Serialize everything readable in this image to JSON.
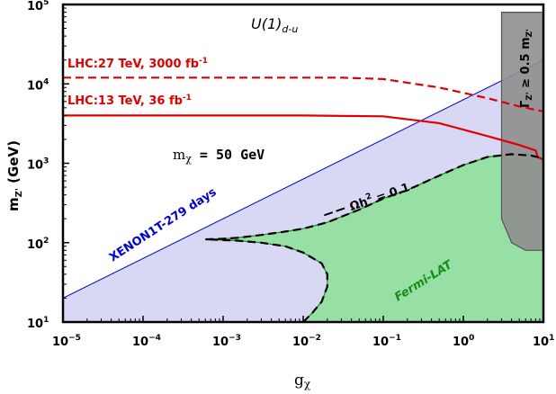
{
  "chart_data": {
    "type": "area",
    "title": "U(1)",
    "title_subscript": "d-u",
    "xlabel": "g",
    "xlabel_subscript": "χ",
    "ylabel": "m",
    "ylabel_subscript": "Z'",
    "ylabel_suffix": " (GeV)",
    "xscale": "log",
    "yscale": "log",
    "xlim": [
      1e-05,
      10
    ],
    "ylim": [
      10,
      100000
    ],
    "x_ticks": [
      {
        "value": 1e-05,
        "base": "10",
        "exp": "−5"
      },
      {
        "value": 0.0001,
        "base": "10",
        "exp": "−4"
      },
      {
        "value": 0.001,
        "base": "10",
        "exp": "−3"
      },
      {
        "value": 0.01,
        "base": "10",
        "exp": "−2"
      },
      {
        "value": 0.1,
        "base": "10",
        "exp": "−1"
      },
      {
        "value": 1,
        "base": "10",
        "exp": "0"
      },
      {
        "value": 10,
        "base": "10",
        "exp": "1"
      }
    ],
    "y_ticks": [
      {
        "value": 10,
        "base": "10",
        "exp": "1"
      },
      {
        "value": 100,
        "base": "10",
        "exp": "2"
      },
      {
        "value": 1000,
        "base": "10",
        "exp": "3"
      },
      {
        "value": 10000,
        "base": "10",
        "exp": "4"
      },
      {
        "value": 100000,
        "base": "10",
        "exp": "5"
      }
    ],
    "annotation_mass": {
      "prefix": "m",
      "sub": "χ",
      "value": " = 50 GeV"
    },
    "series": [
      {
        "name": "XENON1T-279 days",
        "kind": "excluded-region",
        "color": "#0000cc",
        "fill": "#d8d8f4",
        "points": [
          [
            1e-05,
            20
          ],
          [
            10,
            20000
          ],
          [
            10,
            10
          ],
          [
            1e-05,
            10
          ]
        ]
      },
      {
        "name": "LHC:13 TeV, 36 fb",
        "name_sup": "-1",
        "kind": "line",
        "dash": false,
        "color": "#e00000",
        "points": [
          [
            1e-05,
            4000
          ],
          [
            0.01,
            4000
          ],
          [
            0.1,
            3900
          ],
          [
            0.5,
            3200
          ],
          [
            2,
            2200
          ],
          [
            5,
            1700
          ],
          [
            8,
            1450
          ],
          [
            8.5,
            1200
          ],
          [
            10,
            1100
          ]
        ]
      },
      {
        "name": "LHC:27 TeV, 3000 fb",
        "name_sup": "-1",
        "kind": "line",
        "dash": true,
        "color": "#e00000",
        "points": [
          [
            1e-05,
            12000
          ],
          [
            0.03,
            12000
          ],
          [
            0.1,
            11500
          ],
          [
            0.5,
            9000
          ],
          [
            2,
            6600
          ],
          [
            5,
            5200
          ],
          [
            10,
            4500
          ]
        ]
      },
      {
        "name": "Fermi-LAT",
        "kind": "excluded-region",
        "color": "#1a8a1a",
        "fill": "#96e0a6",
        "points": [
          [
            0.0006,
            110
          ],
          [
            0.001,
            112
          ],
          [
            0.0015,
            115
          ],
          [
            0.003,
            125
          ],
          [
            0.006,
            138
          ],
          [
            0.01,
            150
          ],
          [
            0.02,
            180
          ],
          [
            0.05,
            260
          ],
          [
            0.1,
            360
          ],
          [
            0.2,
            460
          ],
          [
            0.5,
            700
          ],
          [
            1,
            950
          ],
          [
            2,
            1200
          ],
          [
            4,
            1300
          ],
          [
            7,
            1250
          ],
          [
            10,
            1150
          ],
          [
            10,
            10
          ],
          [
            0.01,
            10
          ],
          [
            0.013,
            13
          ],
          [
            0.017,
            18
          ],
          [
            0.02,
            28
          ],
          [
            0.02,
            40
          ],
          [
            0.017,
            55
          ],
          [
            0.01,
            75
          ],
          [
            0.006,
            90
          ],
          [
            0.003,
            100
          ],
          [
            0.0015,
            106
          ]
        ]
      },
      {
        "name": "Ωh",
        "name_sup": "2",
        "name_suffix": " = 0.1",
        "kind": "line",
        "dash": true,
        "color": "#000000",
        "points": [
          [
            0.01,
            10
          ],
          [
            0.013,
            13
          ],
          [
            0.017,
            18
          ],
          [
            0.02,
            28
          ],
          [
            0.02,
            40
          ],
          [
            0.017,
            55
          ],
          [
            0.01,
            75
          ],
          [
            0.006,
            90
          ],
          [
            0.003,
            100
          ],
          [
            0.0015,
            106
          ],
          [
            0.0006,
            110
          ],
          [
            0.001,
            112
          ],
          [
            0.0015,
            115
          ],
          [
            0.003,
            125
          ],
          [
            0.006,
            138
          ],
          [
            0.01,
            150
          ],
          [
            0.02,
            180
          ],
          [
            0.05,
            260
          ],
          [
            0.1,
            360
          ],
          [
            0.2,
            460
          ],
          [
            0.5,
            700
          ],
          [
            1,
            950
          ],
          [
            2,
            1200
          ],
          [
            4,
            1300
          ],
          [
            7,
            1250
          ],
          [
            10,
            1150
          ]
        ]
      },
      {
        "name": "Γ",
        "name_sub": "Z'",
        "name_suffix": " ≥ 0.5 m",
        "name_sub2": "Z'",
        "kind": "excluded-region",
        "color": "#555555",
        "fill": "#8f8f8f",
        "points": [
          [
            3,
            80000
          ],
          [
            10,
            80000
          ],
          [
            10,
            80
          ],
          [
            6,
            80
          ],
          [
            4,
            100
          ],
          [
            3,
            200
          ],
          [
            3,
            80000
          ]
        ]
      }
    ],
    "legend": "inline-labels"
  }
}
